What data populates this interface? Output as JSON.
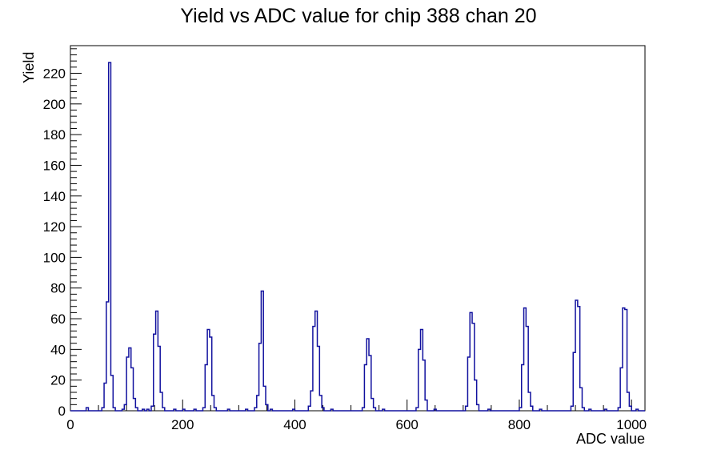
{
  "chart_data": {
    "type": "bar",
    "subtype": "histogram-step",
    "title": "Yield vs ADC value for chip 388 chan 20",
    "xlabel": "ADC value",
    "ylabel": "Yield",
    "xlim": [
      0,
      1024
    ],
    "ylim": [
      0,
      238
    ],
    "bin_width": 4,
    "grid": "off",
    "legend": "none",
    "x_tick_labels": [
      "0",
      "200",
      "400",
      "600",
      "800",
      "1000"
    ],
    "x_major_ticks": [
      0,
      200,
      400,
      600,
      800,
      1000
    ],
    "x_minor_step": 50,
    "y_tick_labels": [
      "0",
      "20",
      "40",
      "60",
      "80",
      "100",
      "120",
      "140",
      "160",
      "180",
      "200",
      "220"
    ],
    "y_major_ticks": [
      0,
      20,
      40,
      60,
      80,
      100,
      120,
      140,
      160,
      180,
      200,
      220
    ],
    "y_minor_step": 4,
    "line_color": "#10109e",
    "frame_color": "#000000",
    "background_color": "#ffffff",
    "peak_summary": [
      {
        "adc": 70,
        "yield": 227
      },
      {
        "adc": 105,
        "yield": 41
      },
      {
        "adc": 153,
        "yield": 65
      },
      {
        "adc": 246,
        "yield": 53
      },
      {
        "adc": 341,
        "yield": 78
      },
      {
        "adc": 436,
        "yield": 65
      },
      {
        "adc": 529,
        "yield": 47
      },
      {
        "adc": 625,
        "yield": 53
      },
      {
        "adc": 715,
        "yield": 64
      },
      {
        "adc": 810,
        "yield": 67
      },
      {
        "adc": 900,
        "yield": 72
      },
      {
        "adc": 986,
        "yield": 67
      }
    ],
    "bins": [
      [
        28,
        2
      ],
      [
        56,
        2
      ],
      [
        60,
        18
      ],
      [
        64,
        71
      ],
      [
        68,
        227
      ],
      [
        72,
        23
      ],
      [
        76,
        2
      ],
      [
        92,
        1
      ],
      [
        96,
        4
      ],
      [
        100,
        35
      ],
      [
        104,
        41
      ],
      [
        108,
        28
      ],
      [
        112,
        8
      ],
      [
        116,
        2
      ],
      [
        128,
        1
      ],
      [
        136,
        1
      ],
      [
        144,
        3
      ],
      [
        148,
        50
      ],
      [
        152,
        65
      ],
      [
        156,
        42
      ],
      [
        160,
        12
      ],
      [
        164,
        2
      ],
      [
        184,
        1
      ],
      [
        200,
        1
      ],
      [
        220,
        1
      ],
      [
        236,
        2
      ],
      [
        240,
        30
      ],
      [
        244,
        53
      ],
      [
        248,
        48
      ],
      [
        252,
        10
      ],
      [
        256,
        2
      ],
      [
        280,
        1
      ],
      [
        312,
        1
      ],
      [
        328,
        2
      ],
      [
        332,
        10
      ],
      [
        336,
        44
      ],
      [
        340,
        78
      ],
      [
        344,
        16
      ],
      [
        348,
        4
      ],
      [
        356,
        1
      ],
      [
        396,
        1
      ],
      [
        424,
        3
      ],
      [
        428,
        13
      ],
      [
        432,
        55
      ],
      [
        436,
        65
      ],
      [
        440,
        42
      ],
      [
        444,
        10
      ],
      [
        448,
        2
      ],
      [
        464,
        1
      ],
      [
        520,
        2
      ],
      [
        524,
        30
      ],
      [
        528,
        47
      ],
      [
        532,
        36
      ],
      [
        536,
        8
      ],
      [
        540,
        2
      ],
      [
        556,
        1
      ],
      [
        616,
        2
      ],
      [
        620,
        40
      ],
      [
        624,
        53
      ],
      [
        628,
        33
      ],
      [
        632,
        7
      ],
      [
        648,
        1
      ],
      [
        704,
        3
      ],
      [
        708,
        35
      ],
      [
        712,
        64
      ],
      [
        716,
        57
      ],
      [
        720,
        20
      ],
      [
        724,
        4
      ],
      [
        744,
        1
      ],
      [
        800,
        2
      ],
      [
        804,
        30
      ],
      [
        808,
        67
      ],
      [
        812,
        55
      ],
      [
        816,
        12
      ],
      [
        820,
        3
      ],
      [
        836,
        1
      ],
      [
        892,
        3
      ],
      [
        896,
        38
      ],
      [
        900,
        72
      ],
      [
        904,
        68
      ],
      [
        908,
        15
      ],
      [
        912,
        2
      ],
      [
        924,
        1
      ],
      [
        952,
        1
      ],
      [
        976,
        2
      ],
      [
        980,
        28
      ],
      [
        984,
        67
      ],
      [
        988,
        66
      ],
      [
        992,
        12
      ],
      [
        996,
        3
      ],
      [
        1008,
        1
      ]
    ]
  }
}
